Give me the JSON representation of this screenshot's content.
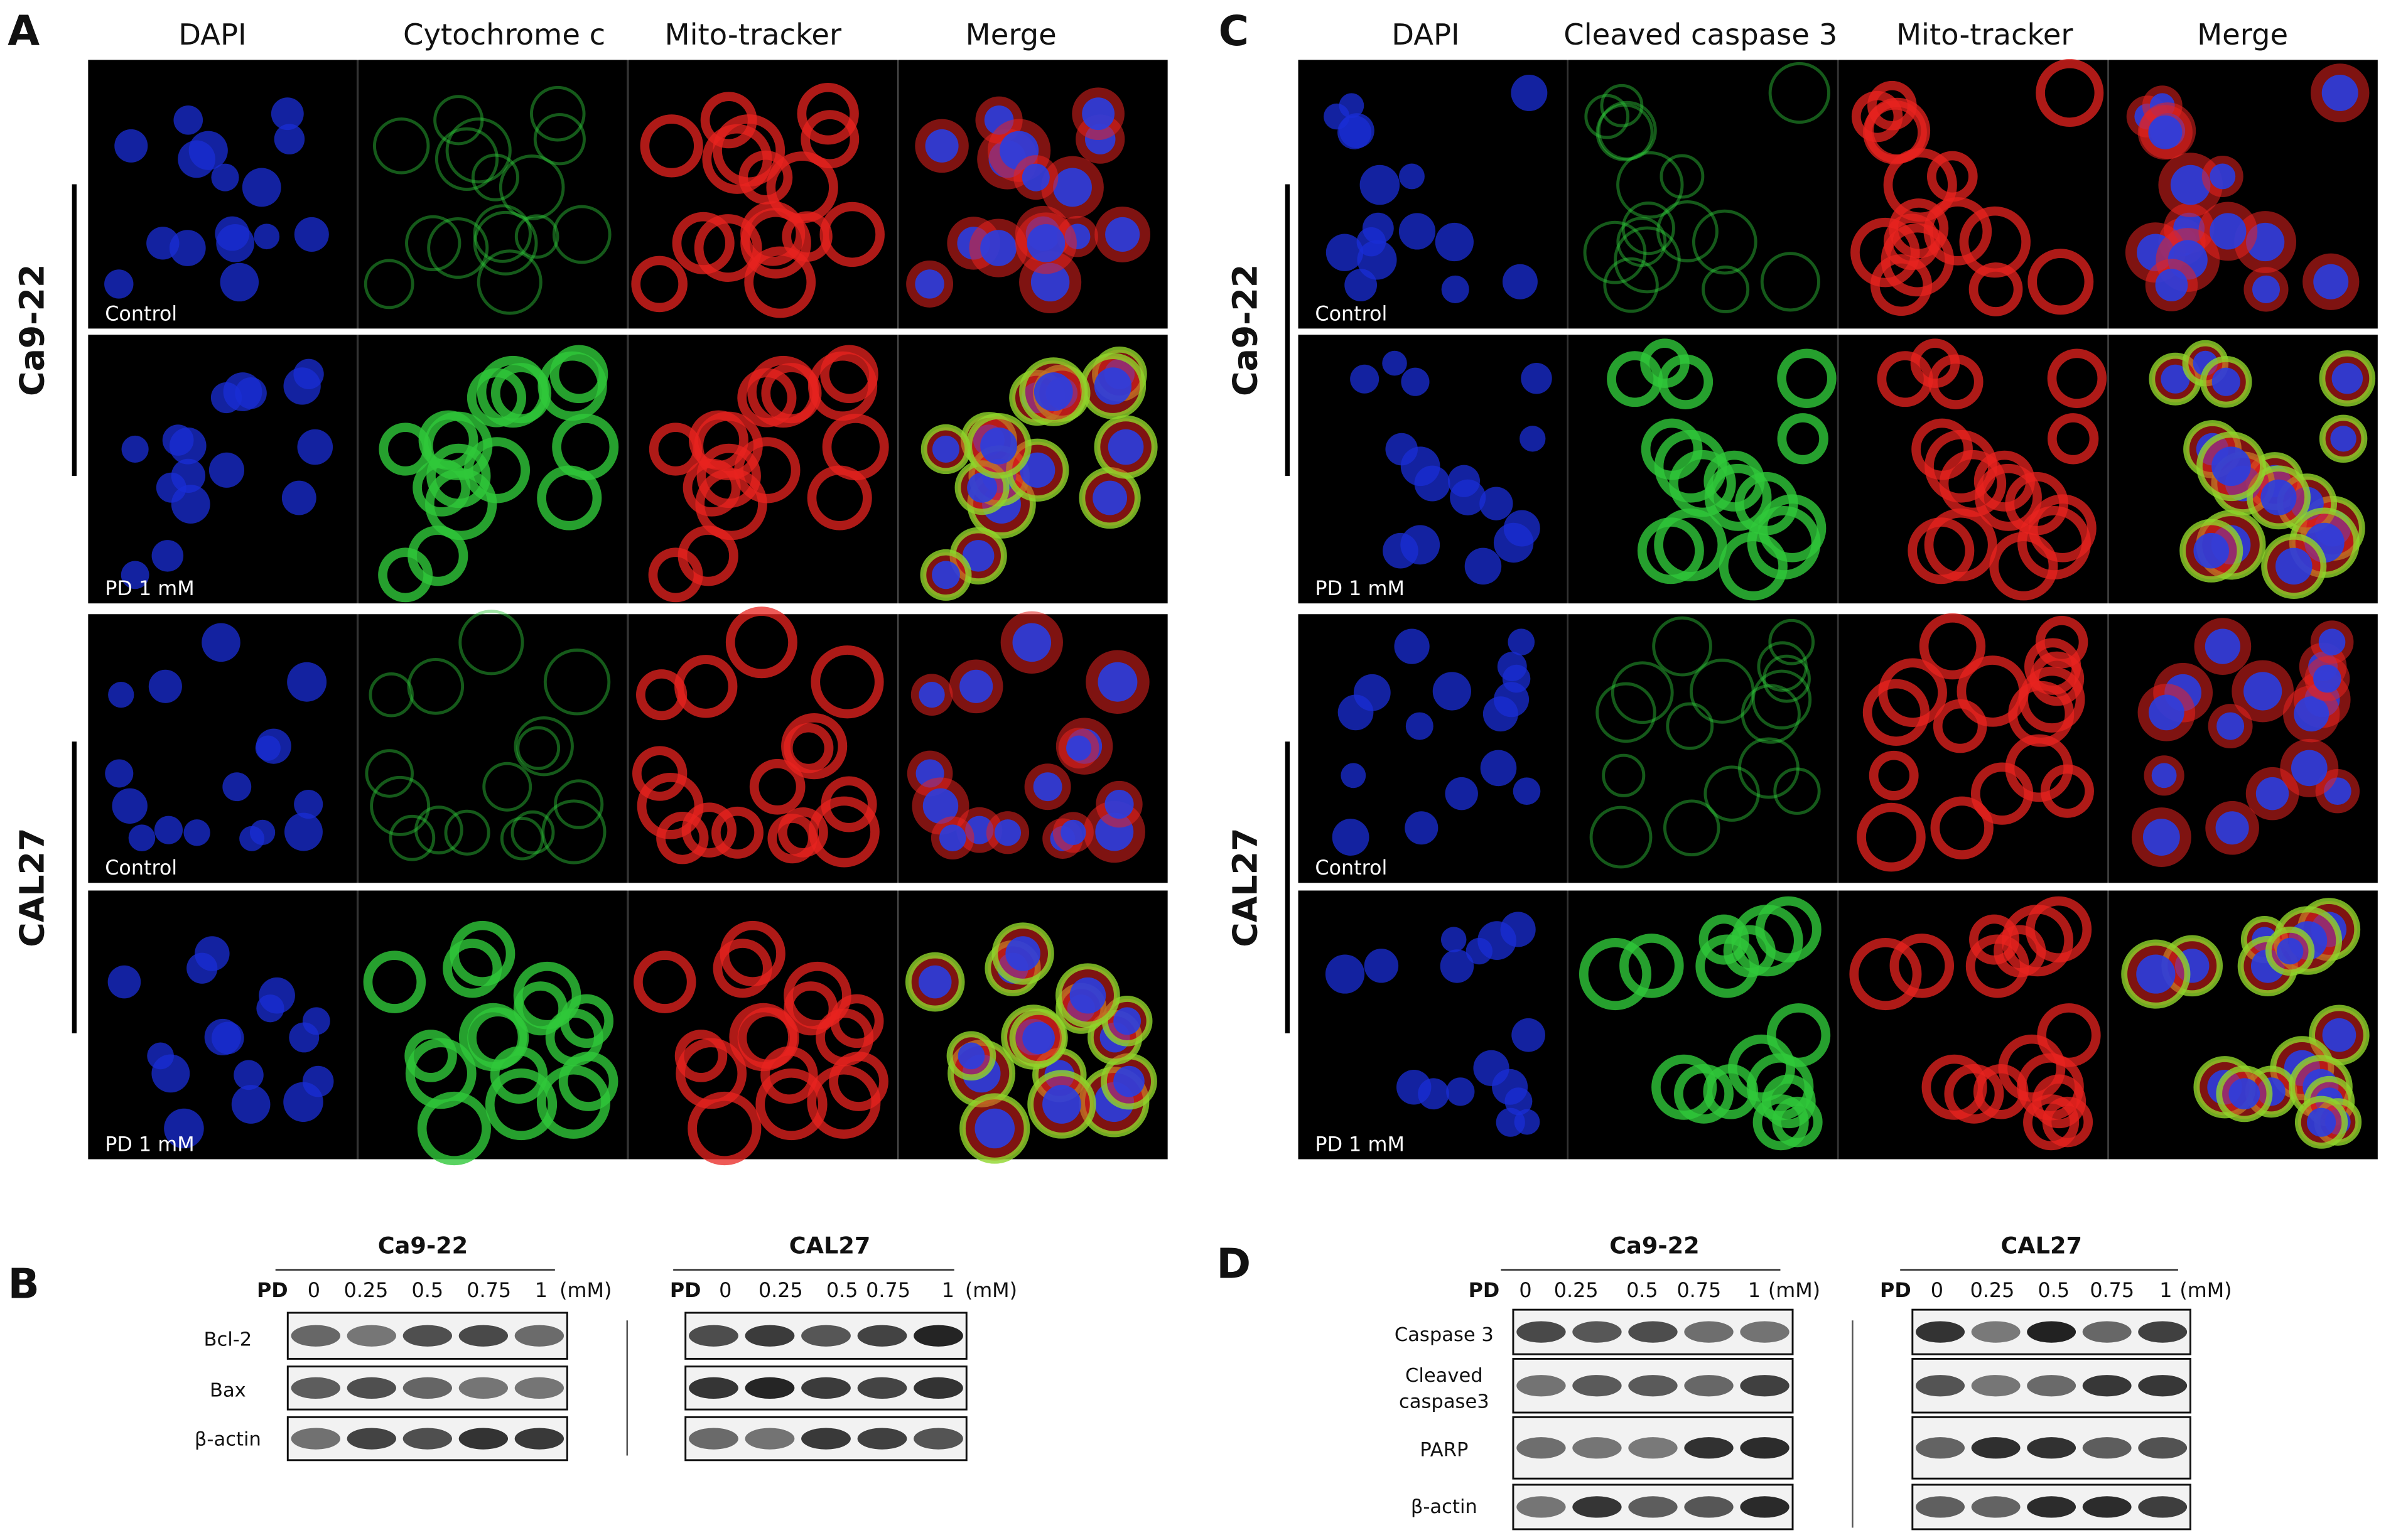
{
  "panel_a": {
    "label": "A",
    "columns": [
      "DAPI",
      "Cytochrome c",
      "Mito-tracker",
      "Merge"
    ],
    "groups": [
      {
        "name": "Ca9-22",
        "rows": [
          "Control",
          "PD 1 mM"
        ]
      },
      {
        "name": "CAL27",
        "rows": [
          "Control",
          "PD 1 mM"
        ]
      }
    ]
  },
  "panel_c": {
    "label": "C",
    "columns": [
      "DAPI",
      "Cleaved caspase 3",
      "Mito-tracker",
      "Merge"
    ],
    "groups": [
      {
        "name": "Ca9-22",
        "rows": [
          "Control",
          "PD 1 mM"
        ]
      },
      {
        "name": "CAL27",
        "rows": [
          "Control",
          "PD 1 mM"
        ]
      }
    ]
  },
  "panel_b": {
    "label": "B",
    "row_labels": [
      [
        "Bcl-2"
      ],
      [
        "Bax"
      ],
      [
        "β-actin"
      ]
    ],
    "blots": [
      {
        "cell": "Ca9-22",
        "treatment": "PD",
        "doses": [
          "0",
          "0.25",
          "0.5",
          "0.75",
          "1"
        ],
        "unit": "(mM)"
      },
      {
        "cell": "CAL27",
        "treatment": "PD",
        "doses": [
          "0",
          "0.25",
          "0.5",
          "0.75",
          "1"
        ],
        "unit": "(mM)"
      }
    ]
  },
  "panel_d": {
    "label": "D",
    "row_labels": [
      [
        "Caspase 3"
      ],
      [
        "Cleaved",
        "caspase3"
      ],
      [
        "PARP"
      ],
      [
        "β-actin"
      ]
    ],
    "blots": [
      {
        "cell": "Ca9-22",
        "treatment": "PD",
        "doses": [
          "0",
          "0.25",
          "0.5",
          "0.75",
          "1"
        ],
        "unit": "(mM)"
      },
      {
        "cell": "CAL27",
        "treatment": "PD",
        "doses": [
          "0",
          "0.25",
          "0.5",
          "0.75",
          "1"
        ],
        "unit": "(mM)"
      }
    ]
  }
}
